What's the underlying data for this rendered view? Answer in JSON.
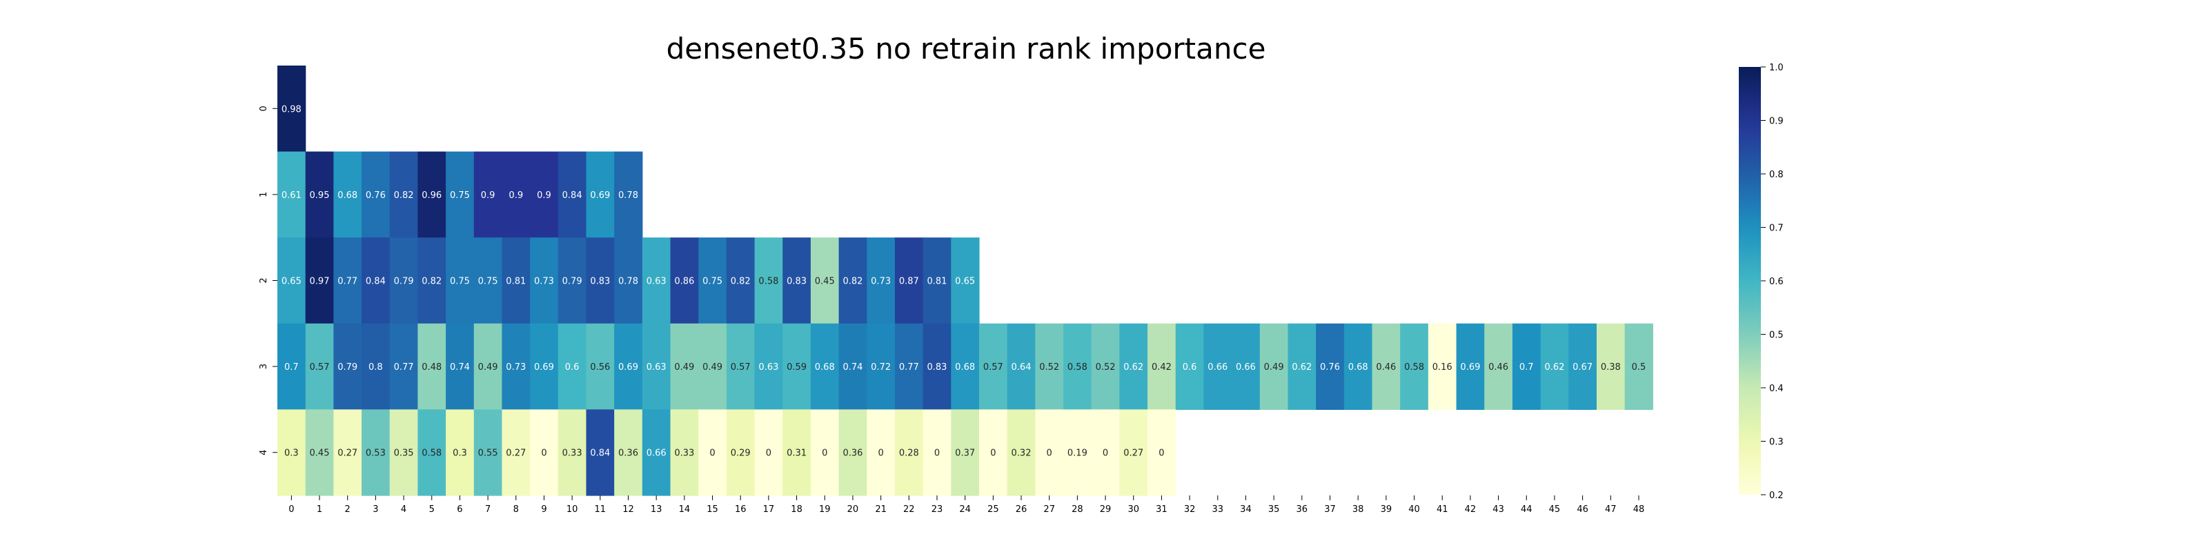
{
  "chart_data": {
    "type": "heatmap",
    "title": "densenet0.35 no retrain rank importance",
    "xlabel": "",
    "ylabel": "",
    "x_ticks": [
      "0",
      "1",
      "2",
      "3",
      "4",
      "5",
      "6",
      "7",
      "8",
      "9",
      "10",
      "11",
      "12",
      "13",
      "14",
      "15",
      "16",
      "17",
      "18",
      "19",
      "20",
      "21",
      "22",
      "23",
      "24",
      "25",
      "26",
      "27",
      "28",
      "29",
      "30",
      "31",
      "32",
      "33",
      "34",
      "35",
      "36",
      "37",
      "38",
      "39",
      "40",
      "41",
      "42",
      "43",
      "44",
      "45",
      "46",
      "47",
      "48"
    ],
    "y_ticks": [
      "0",
      "1",
      "2",
      "3",
      "4"
    ],
    "rows": [
      [
        "0.98"
      ],
      [
        "0.61",
        "0.95",
        "0.68",
        "0.76",
        "0.82",
        "0.96",
        "0.75",
        "0.9",
        "0.9",
        "0.9",
        "0.84",
        "0.69",
        "0.78"
      ],
      [
        "0.65",
        "0.97",
        "0.77",
        "0.84",
        "0.79",
        "0.82",
        "0.75",
        "0.75",
        "0.81",
        "0.73",
        "0.79",
        "0.83",
        "0.78",
        "0.63",
        "0.86",
        "0.75",
        "0.82",
        "0.58",
        "0.83",
        "0.45",
        "0.82",
        "0.73",
        "0.87",
        "0.81",
        "0.65"
      ],
      [
        "0.7",
        "0.57",
        "0.79",
        "0.8",
        "0.77",
        "0.48",
        "0.74",
        "0.49",
        "0.73",
        "0.69",
        "0.6",
        "0.56",
        "0.69",
        "0.63",
        "0.49",
        "0.49",
        "0.57",
        "0.63",
        "0.59",
        "0.68",
        "0.74",
        "0.72",
        "0.77",
        "0.83",
        "0.68",
        "0.57",
        "0.64",
        "0.52",
        "0.58",
        "0.52",
        "0.62",
        "0.42",
        "0.6",
        "0.66",
        "0.66",
        "0.49",
        "0.62",
        "0.76",
        "0.68",
        "0.46",
        "0.58",
        "0.16",
        "0.69",
        "0.46",
        "0.7",
        "0.62",
        "0.67",
        "0.38",
        "0.5"
      ],
      [
        "0.3",
        "0.45",
        "0.27",
        "0.53",
        "0.35",
        "0.58",
        "0.3",
        "0.55",
        "0.27",
        "0",
        "0.33",
        "0.84",
        "0.36",
        "0.66",
        "0.33",
        "0",
        "0.29",
        "0",
        "0.31",
        "0",
        "0.36",
        "0",
        "0.28",
        "0",
        "0.37",
        "0",
        "0.32",
        "0",
        "0.19",
        "0",
        "0.27",
        "0"
      ]
    ],
    "colorbar": {
      "colormap": "YlGnBu",
      "vmin": 0.2,
      "vmax": 1.0,
      "ticks": [
        "0.2",
        "0.3",
        "0.4",
        "0.5",
        "0.6",
        "0.7",
        "0.8",
        "0.9",
        "1.0"
      ]
    },
    "grid": false,
    "legend": "colorbar-right"
  }
}
